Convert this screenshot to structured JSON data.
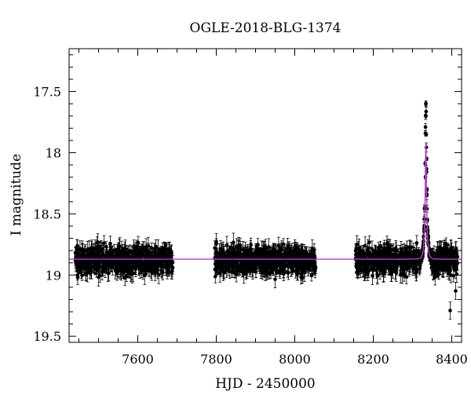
{
  "chart_data": {
    "type": "scatter",
    "title": "OGLE-2018-BLG-1374",
    "xlabel": "HJD - 2450000",
    "ylabel": "I magnitude",
    "xlim": [
      7425,
      8425
    ],
    "ylim": [
      19.55,
      17.15
    ],
    "y_inverted": true,
    "x_ticks": [
      7600,
      7800,
      8000,
      8200,
      8400
    ],
    "x_tick_labels": [
      "7600",
      "7800",
      "8000",
      "8200",
      "8400"
    ],
    "y_ticks": [
      17.5,
      18,
      18.5,
      19,
      19.5
    ],
    "y_tick_labels": [
      "17.5",
      "18",
      "18.5",
      "19",
      "19.5"
    ],
    "grid": false,
    "series": [
      {
        "kind": "observations",
        "color": "#000000",
        "marker": "filled-circle-with-errorbars",
        "seasons": [
          {
            "x_range": [
              7440,
              7690
            ],
            "baseline_mag": 18.88,
            "scatter_mag": 0.1
          },
          {
            "x_range": [
              7795,
              8055
            ],
            "baseline_mag": 18.88,
            "scatter_mag": 0.1
          },
          {
            "x_range": [
              8155,
              8415
            ],
            "baseline_mag": 18.88,
            "scatter_mag": 0.1
          }
        ],
        "peak_points": [
          {
            "x": 8334,
            "y": 17.6
          },
          {
            "x": 8334,
            "y": 17.7
          },
          {
            "x": 8335,
            "y": 17.85
          },
          {
            "x": 8336,
            "y": 18.05
          },
          {
            "x": 8333,
            "y": 18.2
          },
          {
            "x": 8337,
            "y": 18.3
          },
          {
            "x": 8332,
            "y": 18.45
          },
          {
            "x": 8338,
            "y": 18.55
          },
          {
            "x": 8330,
            "y": 18.6
          },
          {
            "x": 8340,
            "y": 18.7
          }
        ],
        "outliers": [
          {
            "x": 8396,
            "y": 19.29
          },
          {
            "x": 8410,
            "y": 19.13
          }
        ]
      },
      {
        "kind": "model",
        "color": "#b03cc8",
        "baseline_mag": 18.87,
        "peak_x": 8334,
        "peak_mag": 17.92,
        "tE": 4.5
      }
    ]
  }
}
